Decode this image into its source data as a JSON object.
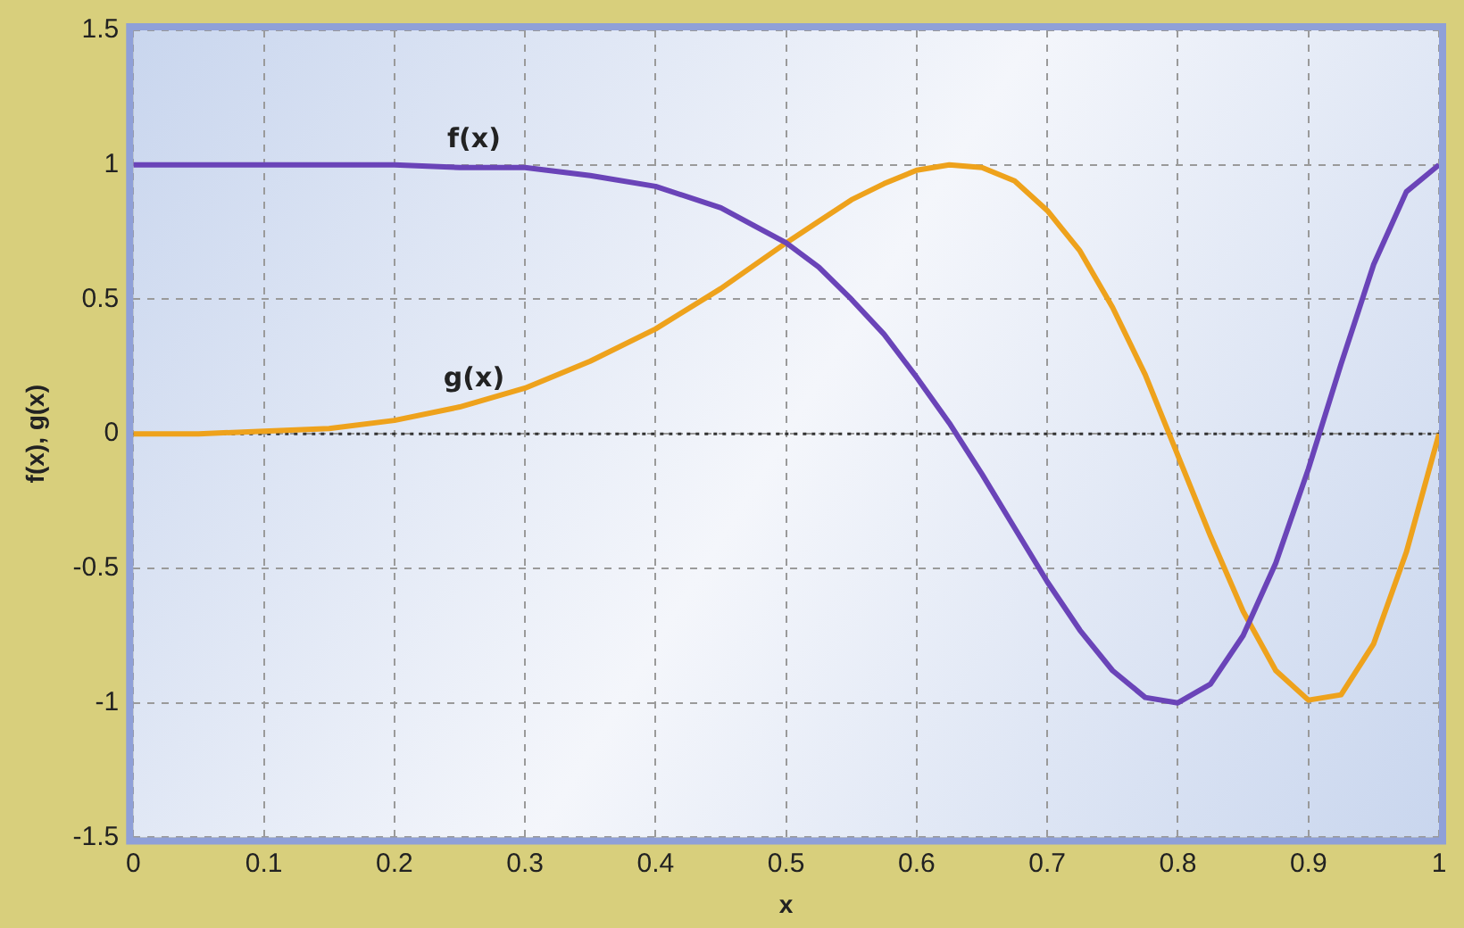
{
  "chart_data": {
    "type": "line",
    "xlabel": "x",
    "ylabel": "f(x), g(x)",
    "x": [
      0,
      0.05,
      0.1,
      0.15,
      0.2,
      0.25,
      0.3,
      0.35,
      0.4,
      0.45,
      0.5,
      0.525,
      0.55,
      0.575,
      0.6,
      0.625,
      0.65,
      0.675,
      0.7,
      0.725,
      0.75,
      0.775,
      0.8,
      0.825,
      0.85,
      0.875,
      0.9,
      0.925,
      0.95,
      0.975,
      1
    ],
    "series": [
      {
        "name": "f(x)",
        "color": "#6a44b8",
        "values": [
          1,
          1,
          1,
          1,
          1,
          0.99,
          0.99,
          0.96,
          0.92,
          0.84,
          0.71,
          0.62,
          0.5,
          0.37,
          0.21,
          0.04,
          -0.15,
          -0.35,
          -0.55,
          -0.73,
          -0.88,
          -0.98,
          -1,
          -0.93,
          -0.75,
          -0.48,
          -0.13,
          0.26,
          0.63,
          0.9,
          1
        ]
      },
      {
        "name": "g(x)",
        "color": "#eea21c",
        "values": [
          0,
          0,
          0.01,
          0.02,
          0.05,
          0.1,
          0.17,
          0.27,
          0.39,
          0.54,
          0.71,
          0.79,
          0.87,
          0.93,
          0.98,
          1,
          0.99,
          0.94,
          0.83,
          0.68,
          0.47,
          0.22,
          -0.08,
          -0.38,
          -0.66,
          -0.88,
          -0.99,
          -0.97,
          -0.78,
          -0.44,
          0
        ]
      }
    ],
    "xlim": [
      0,
      1
    ],
    "xticks": [
      0,
      0.1,
      0.2,
      0.3,
      0.4,
      0.5,
      0.6,
      0.7,
      0.8,
      0.9,
      1
    ],
    "ylim": [
      -1.5,
      1.5
    ],
    "yticks": [
      -1.5,
      -1,
      -0.5,
      0,
      0.5,
      1,
      1.5
    ],
    "grid": true,
    "line_style": "solid",
    "marker": "none",
    "ref_lines": [
      {
        "axis": "y",
        "value": 0,
        "color": "#333333",
        "line_style": "dotted"
      }
    ]
  }
}
